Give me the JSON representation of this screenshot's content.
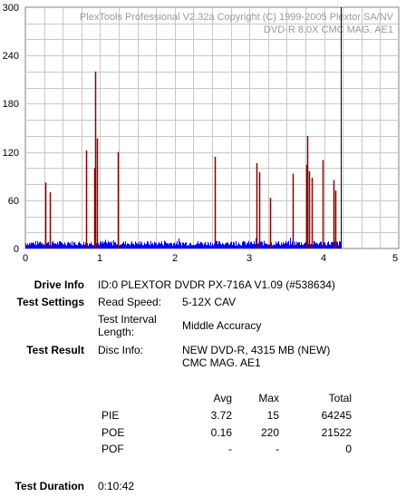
{
  "chart_data": {
    "type": "bar",
    "xlim": [
      0,
      5
    ],
    "ylim": [
      0,
      300
    ],
    "x_ticks": [
      "0",
      "1",
      "2",
      "3",
      "4",
      "5"
    ],
    "y_ticks": [
      "0",
      "60",
      "120",
      "180",
      "240",
      "300"
    ],
    "watermark": [
      "PlexTools Professional V2.32a Copyright (C) 1999-2005 Plextor SA/NV",
      "DVD-R   8.0X   CMC MAG. AE1"
    ],
    "end_marker_x": 4.22,
    "series": [
      {
        "color": "#0000ff",
        "baseline_range": [
          0,
          4.22
        ],
        "base_level": 6,
        "variation": 6
      },
      {
        "color": "#8b0000",
        "points": [
          {
            "x": 0.27,
            "y": 82
          },
          {
            "x": 0.33,
            "y": 70
          },
          {
            "x": 0.81,
            "y": 122
          },
          {
            "x": 0.92,
            "y": 100
          },
          {
            "x": 0.94,
            "y": 220
          },
          {
            "x": 0.96,
            "y": 137
          },
          {
            "x": 1.24,
            "y": 120
          },
          {
            "x": 2.54,
            "y": 114
          },
          {
            "x": 3.09,
            "y": 106
          },
          {
            "x": 3.13,
            "y": 95
          },
          {
            "x": 3.28,
            "y": 63
          },
          {
            "x": 3.58,
            "y": 93
          },
          {
            "x": 3.76,
            "y": 104
          },
          {
            "x": 3.78,
            "y": 140
          },
          {
            "x": 3.8,
            "y": 96
          },
          {
            "x": 3.84,
            "y": 88
          },
          {
            "x": 3.98,
            "y": 110
          },
          {
            "x": 4.13,
            "y": 85
          },
          {
            "x": 4.15,
            "y": 72
          }
        ]
      }
    ]
  },
  "info": {
    "drive_info_label": "Drive Info",
    "drive_info_value": "ID:0 PLEXTOR DVDR PX-716A V1.09 (#538634)",
    "test_settings_label": "Test Settings",
    "read_speed_label": "Read Speed:",
    "read_speed_value": "5-12X CAV",
    "interval_label_1": "Test Interval",
    "interval_label_2": "Length:",
    "interval_value": "Middle Accuracy",
    "test_result_label": "Test Result",
    "disc_info_label": "Disc Info:",
    "disc_info_value_1": "NEW DVD-R, 4315 MB (NEW)",
    "disc_info_value_2": "CMC MAG. AE1",
    "test_duration_label": "Test Duration",
    "test_duration_value": "0:10:42"
  },
  "results": {
    "headers": [
      "Avg",
      "Max",
      "Total"
    ],
    "rows": [
      {
        "name": "PIE",
        "avg": "3.72",
        "max": "15",
        "total": "64245"
      },
      {
        "name": "POE",
        "avg": "0.16",
        "max": "220",
        "total": "21522"
      },
      {
        "name": "POF",
        "avg": "-",
        "max": "-",
        "total": "0"
      }
    ]
  }
}
